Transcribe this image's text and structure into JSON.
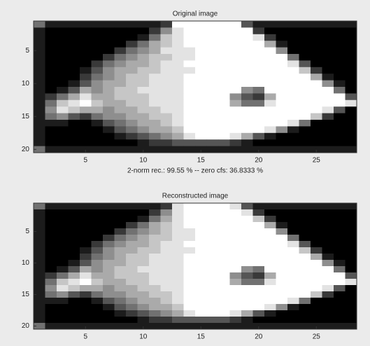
{
  "chart_data": [
    {
      "type": "heatmap",
      "title": "Original image",
      "xlabel": "2-norm rec.: 99.55 %  -- zero cfs: 36.8333 %",
      "colormap": "gray",
      "clim": [
        0,
        9
      ],
      "xlim": [
        0.5,
        28.5
      ],
      "ylim": [
        0.5,
        20.5
      ],
      "xticks": [
        5,
        10,
        15,
        20,
        25
      ],
      "yticks": [
        5,
        10,
        15,
        20
      ],
      "values": [
        [
          4,
          1,
          1,
          1,
          1,
          1,
          1,
          1,
          1,
          1,
          1,
          2,
          9,
          9,
          9,
          9,
          9,
          9,
          3,
          1,
          1,
          1,
          1,
          1,
          1,
          1,
          1,
          1
        ],
        [
          1,
          0,
          0,
          0,
          0,
          0,
          0,
          0,
          0,
          0,
          2,
          5,
          8,
          9,
          9,
          9,
          9,
          9,
          9,
          2,
          0,
          0,
          0,
          0,
          0,
          0,
          0,
          0
        ],
        [
          1,
          0,
          0,
          0,
          0,
          0,
          0,
          0,
          0,
          1,
          4,
          7,
          8,
          9,
          9,
          9,
          9,
          9,
          9,
          8,
          2,
          0,
          0,
          0,
          0,
          0,
          0,
          0
        ],
        [
          1,
          0,
          0,
          0,
          0,
          0,
          0,
          0,
          2,
          4,
          6,
          7,
          8,
          9,
          9,
          9,
          9,
          9,
          9,
          9,
          6,
          1,
          0,
          0,
          0,
          0,
          0,
          0
        ],
        [
          1,
          0,
          0,
          0,
          0,
          0,
          0,
          2,
          4,
          5,
          6,
          8,
          8,
          8,
          9,
          9,
          9,
          9,
          9,
          9,
          9,
          5,
          0,
          0,
          0,
          0,
          0,
          0
        ],
        [
          1,
          0,
          0,
          0,
          0,
          0,
          2,
          4,
          5,
          6,
          7,
          7,
          8,
          8,
          9,
          9,
          9,
          9,
          9,
          9,
          9,
          9,
          4,
          0,
          0,
          0,
          0,
          0
        ],
        [
          1,
          0,
          0,
          0,
          0,
          2,
          4,
          5,
          6,
          6,
          7,
          8,
          8,
          9,
          9,
          9,
          9,
          9,
          9,
          9,
          9,
          9,
          8,
          3,
          0,
          0,
          0,
          0
        ],
        [
          1,
          0,
          0,
          0,
          1,
          3,
          5,
          6,
          6,
          7,
          7,
          8,
          8,
          8,
          9,
          9,
          9,
          9,
          9,
          9,
          9,
          9,
          9,
          7,
          2,
          0,
          0,
          0
        ],
        [
          1,
          0,
          0,
          0,
          2,
          4,
          5,
          6,
          7,
          7,
          8,
          8,
          8,
          9,
          9,
          9,
          9,
          9,
          9,
          9,
          9,
          9,
          9,
          9,
          6,
          1,
          0,
          0
        ],
        [
          1,
          0,
          0,
          1,
          3,
          5,
          6,
          6,
          7,
          7,
          8,
          8,
          8,
          9,
          9,
          9,
          9,
          9,
          9,
          9,
          9,
          9,
          9,
          9,
          9,
          5,
          1,
          0
        ],
        [
          1,
          0,
          1,
          3,
          6,
          5,
          6,
          7,
          7,
          8,
          8,
          8,
          8,
          9,
          9,
          9,
          9,
          9,
          5,
          4,
          9,
          9,
          9,
          9,
          9,
          9,
          4,
          0
        ],
        [
          1,
          2,
          4,
          6,
          8,
          6,
          6,
          7,
          7,
          7,
          8,
          8,
          8,
          9,
          9,
          9,
          9,
          5,
          3,
          2,
          6,
          9,
          9,
          9,
          9,
          9,
          9,
          3
        ],
        [
          1,
          4,
          7,
          8,
          9,
          7,
          6,
          6,
          7,
          7,
          8,
          8,
          8,
          9,
          9,
          9,
          9,
          6,
          4,
          4,
          8,
          9,
          9,
          9,
          9,
          9,
          9,
          8
        ],
        [
          1,
          5,
          8,
          7,
          6,
          6,
          5,
          6,
          6,
          7,
          7,
          8,
          8,
          9,
          9,
          9,
          9,
          9,
          9,
          9,
          9,
          9,
          9,
          9,
          9,
          8,
          3,
          0
        ],
        [
          1,
          4,
          5,
          3,
          2,
          4,
          5,
          5,
          6,
          6,
          7,
          7,
          8,
          9,
          9,
          9,
          9,
          9,
          9,
          9,
          9,
          9,
          9,
          9,
          7,
          2,
          0,
          0
        ],
        [
          1,
          1,
          1,
          0,
          0,
          1,
          3,
          4,
          5,
          6,
          6,
          7,
          8,
          9,
          9,
          9,
          9,
          9,
          9,
          9,
          9,
          9,
          8,
          4,
          0,
          0,
          0,
          0
        ],
        [
          1,
          0,
          0,
          0,
          0,
          0,
          1,
          3,
          4,
          5,
          6,
          6,
          7,
          9,
          9,
          9,
          9,
          9,
          9,
          9,
          8,
          5,
          1,
          0,
          0,
          0,
          0,
          0
        ],
        [
          1,
          0,
          0,
          0,
          0,
          0,
          0,
          1,
          2,
          3,
          4,
          5,
          6,
          8,
          9,
          9,
          9,
          8,
          6,
          3,
          1,
          0,
          0,
          0,
          0,
          0,
          0,
          0
        ],
        [
          1,
          0,
          0,
          0,
          0,
          0,
          0,
          0,
          0,
          1,
          2,
          2,
          3,
          3,
          3,
          3,
          3,
          2,
          1,
          0,
          0,
          0,
          0,
          0,
          0,
          0,
          0,
          0
        ],
        [
          4,
          1,
          1,
          1,
          1,
          1,
          1,
          1,
          1,
          1,
          1,
          1,
          1,
          1,
          1,
          1,
          1,
          1,
          1,
          1,
          1,
          1,
          1,
          1,
          1,
          1,
          1,
          1
        ]
      ]
    },
    {
      "type": "heatmap",
      "title": "Reconstructed image",
      "colormap": "gray",
      "clim": [
        0,
        9
      ],
      "xlim": [
        0.5,
        28.5
      ],
      "ylim": [
        0.5,
        20.5
      ],
      "xticks": [
        5,
        10,
        15,
        20,
        25
      ],
      "yticks": [
        5,
        10,
        15,
        20
      ],
      "values": [
        [
          4,
          1,
          1,
          1,
          1,
          1,
          1,
          1,
          1,
          1,
          1,
          2,
          8,
          9,
          9,
          9,
          9,
          8,
          3,
          1,
          1,
          1,
          1,
          1,
          1,
          1,
          1,
          1
        ],
        [
          1,
          0,
          0,
          0,
          0,
          0,
          0,
          0,
          0,
          0,
          2,
          5,
          8,
          9,
          9,
          9,
          9,
          9,
          8,
          2,
          0,
          0,
          0,
          0,
          0,
          0,
          0,
          0
        ],
        [
          1,
          0,
          0,
          0,
          0,
          0,
          0,
          0,
          0,
          1,
          4,
          6,
          8,
          9,
          9,
          9,
          9,
          9,
          9,
          7,
          2,
          0,
          0,
          0,
          0,
          0,
          0,
          0
        ],
        [
          1,
          0,
          0,
          0,
          0,
          0,
          0,
          0,
          2,
          4,
          6,
          7,
          8,
          9,
          9,
          9,
          9,
          9,
          9,
          9,
          6,
          1,
          0,
          0,
          0,
          0,
          0,
          0
        ],
        [
          1,
          0,
          0,
          0,
          0,
          0,
          0,
          2,
          4,
          5,
          6,
          7,
          8,
          8,
          9,
          9,
          9,
          9,
          9,
          9,
          9,
          5,
          0,
          0,
          0,
          0,
          0,
          0
        ],
        [
          1,
          0,
          0,
          0,
          0,
          0,
          2,
          4,
          5,
          6,
          7,
          7,
          8,
          8,
          9,
          9,
          9,
          9,
          9,
          9,
          9,
          9,
          4,
          0,
          0,
          0,
          0,
          0
        ],
        [
          1,
          0,
          0,
          0,
          0,
          2,
          4,
          5,
          6,
          6,
          7,
          8,
          8,
          9,
          9,
          9,
          9,
          9,
          9,
          9,
          9,
          9,
          8,
          3,
          0,
          0,
          0,
          0
        ],
        [
          1,
          0,
          0,
          0,
          1,
          3,
          5,
          6,
          6,
          7,
          7,
          8,
          8,
          8,
          9,
          9,
          9,
          9,
          9,
          9,
          9,
          9,
          9,
          7,
          2,
          0,
          0,
          0
        ],
        [
          1,
          0,
          0,
          0,
          2,
          4,
          5,
          6,
          7,
          7,
          8,
          8,
          8,
          9,
          9,
          9,
          9,
          9,
          9,
          9,
          9,
          9,
          9,
          9,
          6,
          1,
          0,
          0
        ],
        [
          1,
          0,
          0,
          1,
          3,
          5,
          6,
          6,
          7,
          7,
          8,
          8,
          8,
          9,
          9,
          9,
          9,
          9,
          9,
          9,
          9,
          9,
          9,
          9,
          9,
          5,
          1,
          0
        ],
        [
          1,
          0,
          1,
          3,
          6,
          5,
          6,
          7,
          7,
          8,
          8,
          8,
          8,
          9,
          9,
          9,
          9,
          9,
          5,
          4,
          9,
          9,
          9,
          9,
          9,
          9,
          4,
          0
        ],
        [
          1,
          2,
          4,
          6,
          8,
          6,
          6,
          7,
          7,
          7,
          8,
          8,
          8,
          9,
          9,
          9,
          9,
          5,
          3,
          2,
          6,
          9,
          9,
          9,
          9,
          9,
          9,
          3
        ],
        [
          1,
          4,
          7,
          8,
          9,
          7,
          6,
          6,
          7,
          7,
          8,
          8,
          8,
          9,
          9,
          9,
          9,
          6,
          4,
          4,
          8,
          9,
          9,
          9,
          9,
          9,
          9,
          8
        ],
        [
          1,
          5,
          8,
          7,
          6,
          6,
          5,
          6,
          6,
          7,
          7,
          8,
          8,
          9,
          9,
          9,
          9,
          9,
          9,
          9,
          9,
          9,
          9,
          9,
          9,
          8,
          3,
          0
        ],
        [
          1,
          4,
          5,
          3,
          2,
          4,
          5,
          5,
          6,
          6,
          7,
          7,
          8,
          9,
          9,
          9,
          9,
          9,
          9,
          9,
          9,
          9,
          9,
          9,
          7,
          2,
          0,
          0
        ],
        [
          1,
          1,
          1,
          0,
          0,
          1,
          3,
          4,
          5,
          6,
          6,
          7,
          8,
          9,
          9,
          9,
          9,
          9,
          9,
          9,
          9,
          9,
          8,
          4,
          0,
          0,
          0,
          0
        ],
        [
          1,
          0,
          0,
          0,
          0,
          0,
          1,
          3,
          4,
          5,
          6,
          6,
          7,
          9,
          9,
          9,
          9,
          9,
          9,
          9,
          8,
          5,
          1,
          0,
          0,
          0,
          0,
          0
        ],
        [
          1,
          0,
          0,
          0,
          0,
          0,
          0,
          1,
          2,
          3,
          4,
          5,
          6,
          8,
          9,
          9,
          9,
          8,
          6,
          3,
          1,
          0,
          0,
          0,
          0,
          0,
          0,
          0
        ],
        [
          1,
          0,
          0,
          0,
          0,
          0,
          0,
          0,
          0,
          1,
          2,
          2,
          3,
          3,
          3,
          3,
          3,
          2,
          1,
          0,
          0,
          0,
          0,
          0,
          0,
          0,
          0,
          0
        ],
        [
          4,
          1,
          1,
          1,
          1,
          1,
          1,
          1,
          1,
          1,
          1,
          1,
          1,
          1,
          1,
          1,
          1,
          1,
          1,
          1,
          1,
          1,
          1,
          1,
          1,
          1,
          1,
          1
        ]
      ]
    }
  ]
}
